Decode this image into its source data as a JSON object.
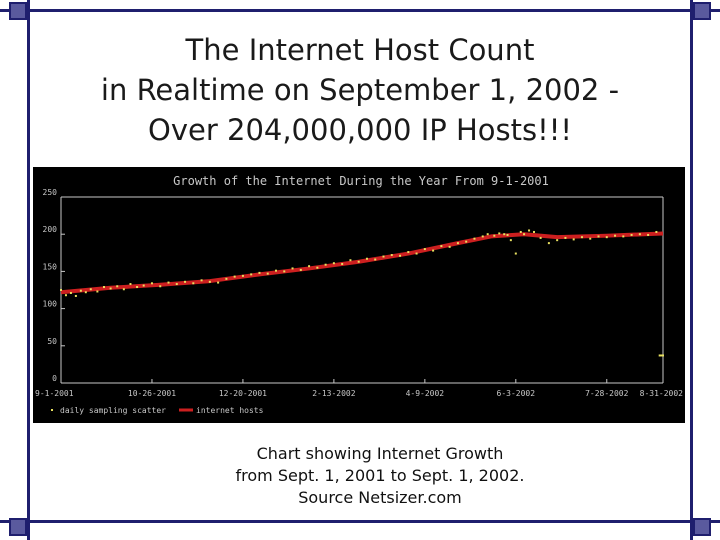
{
  "slide": {
    "title_lines": [
      "The Internet Host Count",
      "in Realtime on September 1, 2002 -",
      "Over 204,000,000 IP Hosts!!!"
    ],
    "caption_lines": [
      "Chart showing Internet Growth",
      "from Sept. 1, 2001 to Sept. 1, 2002.",
      "Source Netsizer.com"
    ]
  },
  "colors": {
    "frame": "#1f1f6e",
    "chart_background": "#000000",
    "chart_text": "#c8c8c8",
    "scatter": "#e8e060",
    "line": "#cc1f1f"
  },
  "chart_data": {
    "type": "line",
    "title": "Growth of the Internet During the Year From 9-1-2001",
    "ylim": [
      0,
      250
    ],
    "yticks": [
      "0",
      "50",
      "100",
      "150",
      "200",
      "250"
    ],
    "xtick_labels": [
      "9-1-2001",
      "10-26-2001",
      "12-20-2001",
      "2-13-2002",
      "4-9-2002",
      "6-3-2002",
      "7-28-2002",
      "8-31-2002"
    ],
    "xtick_days": [
      0,
      55,
      110,
      165,
      220,
      275,
      330,
      364
    ],
    "xlim_days": [
      0,
      364
    ],
    "grid": false,
    "legend_position": "bottom-left",
    "series": [
      {
        "name": "internet hosts",
        "kind": "line",
        "x_days": [
          0,
          30,
          60,
          90,
          120,
          150,
          180,
          210,
          240,
          260,
          280,
          300,
          330,
          364
        ],
        "y": [
          122,
          128,
          132,
          137,
          146,
          154,
          163,
          174,
          188,
          197,
          200,
          196,
          198,
          201
        ]
      },
      {
        "name": "daily sampling scatter",
        "kind": "scatter",
        "x_days": [
          0,
          3,
          6,
          9,
          12,
          15,
          18,
          22,
          26,
          30,
          34,
          38,
          42,
          46,
          50,
          55,
          60,
          65,
          70,
          75,
          80,
          85,
          90,
          95,
          100,
          105,
          110,
          115,
          120,
          125,
          130,
          135,
          140,
          145,
          150,
          155,
          160,
          165,
          170,
          175,
          180,
          185,
          190,
          195,
          200,
          205,
          210,
          215,
          220,
          225,
          230,
          235,
          240,
          245,
          250,
          255,
          258,
          262,
          265,
          268,
          270,
          272,
          275,
          278,
          280,
          283,
          286,
          290,
          295,
          300,
          305,
          310,
          315,
          320,
          325,
          330,
          335,
          340,
          345,
          350,
          355,
          360,
          362,
          363,
          364
        ],
        "y": [
          125,
          118,
          121,
          117,
          124,
          122,
          126,
          123,
          129,
          127,
          130,
          126,
          133,
          129,
          131,
          134,
          130,
          135,
          133,
          136,
          134,
          138,
          136,
          135,
          140,
          143,
          144,
          146,
          148,
          147,
          151,
          150,
          154,
          152,
          157,
          155,
          159,
          161,
          160,
          165,
          163,
          167,
          166,
          170,
          172,
          171,
          176,
          174,
          180,
          178,
          184,
          183,
          188,
          190,
          194,
          197,
          200,
          198,
          201,
          200,
          199,
          192,
          174,
          203,
          200,
          205,
          203,
          195,
          188,
          192,
          195,
          193,
          196,
          194,
          197,
          196,
          198,
          197,
          199,
          200,
          199,
          203,
          37,
          37,
          37
        ]
      }
    ]
  }
}
